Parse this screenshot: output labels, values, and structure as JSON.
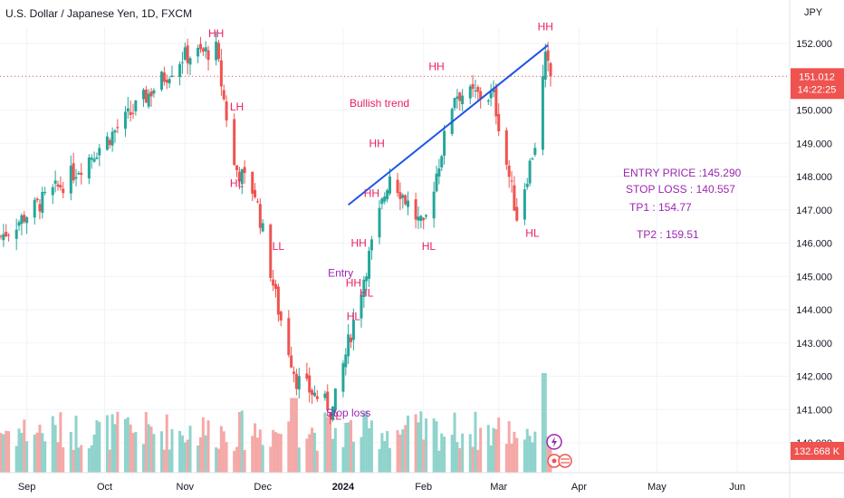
{
  "header": {
    "title": "U.S. Dollar / Japanese Yen, 1D, FXCM",
    "price_scale_label": "JPY"
  },
  "notes": {
    "entry": "ENTRY PRICE :145.290",
    "stop": "STOP LOSS : 140.557",
    "tp1": "TP1 :   154.77",
    "tp2": "TP2 : 159.51"
  },
  "price_badge": {
    "price": "151.012",
    "countdown": "14:22:25",
    "color": "#ef5350"
  },
  "volume_badge": {
    "value": "132.668 K",
    "color": "#ef5350"
  },
  "colors": {
    "up": "#26a69a",
    "down": "#ef5350",
    "up_volume": "#8fd3cc",
    "down_volume": "#f4a9a7",
    "annotation": "#e91e63",
    "annotation_purple": "#9c27b0",
    "trendline": "#1e53e5",
    "grid": "#f0f3fa"
  },
  "chart_data": {
    "type": "candlestick",
    "title": "U.S. Dollar / Japanese Yen, 1D, FXCM",
    "x_tick_labels": [
      "Sep",
      "Oct",
      "Nov",
      "Dec",
      "2024",
      "Feb",
      "Mar",
      "Apr",
      "May",
      "Jun"
    ],
    "y_tick_labels": [
      "152.000",
      "151.000",
      "150.000",
      "149.000",
      "148.000",
      "147.000",
      "146.000",
      "145.000",
      "144.000",
      "143.000",
      "142.000",
      "141.000",
      "140.000"
    ],
    "ylim": [
      139.0,
      152.8
    ],
    "grid": true,
    "last_price": 151.012,
    "key_points": [
      {
        "date": "2023-08-22",
        "close": 146.2
      },
      {
        "date": "2023-09-15",
        "close": 147.8
      },
      {
        "date": "2023-10-03",
        "close": 149.2
      },
      {
        "date": "2023-10-31",
        "close": 151.6
      },
      {
        "date": "2023-11-13",
        "close": 151.8
      },
      {
        "date": "2023-11-20",
        "close": 148.3
      },
      {
        "date": "2023-11-28",
        "close": 147.5
      },
      {
        "date": "2023-12-07",
        "close": 144.0
      },
      {
        "date": "2023-12-14",
        "close": 141.9
      },
      {
        "date": "2023-12-28",
        "close": 141.0
      },
      {
        "date": "2024-01-10",
        "close": 145.3
      },
      {
        "date": "2024-01-19",
        "close": 148.1
      },
      {
        "date": "2024-02-01",
        "close": 146.4
      },
      {
        "date": "2024-02-13",
        "close": 150.5
      },
      {
        "date": "2024-02-28",
        "close": 150.4
      },
      {
        "date": "2024-03-08",
        "close": 146.8
      },
      {
        "date": "2024-03-15",
        "close": 149.0
      },
      {
        "date": "2024-03-19",
        "close": 151.5
      },
      {
        "date": "2024-03-21",
        "close": 151.0
      }
    ],
    "annotations": [
      {
        "text": "HH",
        "date": "2023-11-13",
        "price": 152.3
      },
      {
        "text": "LH",
        "date": "2023-11-21",
        "price": 150.1
      },
      {
        "text": "HL",
        "date": "2023-11-21",
        "price": 147.8
      },
      {
        "text": "LL",
        "date": "2023-12-07",
        "price": 145.9
      },
      {
        "text": "LL",
        "date": "2023-12-29",
        "price": 140.8
      },
      {
        "text": "Stop loss",
        "date": "2024-01-03",
        "price": 140.9
      },
      {
        "text": "Entry",
        "date": "2023-12-31",
        "price": 145.1
      },
      {
        "text": "HH",
        "date": "2024-01-05",
        "price": 144.8
      },
      {
        "text": "HL",
        "date": "2024-01-05",
        "price": 143.8
      },
      {
        "text": "HH",
        "date": "2024-01-07",
        "price": 146.0
      },
      {
        "text": "HL",
        "date": "2024-01-10",
        "price": 144.5
      },
      {
        "text": "HH",
        "date": "2024-01-12",
        "price": 147.5
      },
      {
        "text": "HH",
        "date": "2024-01-14",
        "price": 149.0
      },
      {
        "text": "HL",
        "date": "2024-02-03",
        "price": 145.9
      },
      {
        "text": "Bullish trend",
        "date": "2024-01-15",
        "price": 150.2
      },
      {
        "text": "HH",
        "date": "2024-02-06",
        "price": 151.3
      },
      {
        "text": "HL",
        "date": "2024-03-14",
        "price": 146.3
      },
      {
        "text": "HH",
        "date": "2024-03-19",
        "price": 152.5
      }
    ],
    "trendline": {
      "from": {
        "date": "2024-01-03",
        "price": 147.15
      },
      "to": {
        "date": "2024-03-20",
        "price": 151.95
      }
    },
    "horizontal_line": {
      "price": 151.012,
      "style": "dotted"
    },
    "series": [
      {
        "values": [
          146.2,
          147.8,
          149.2,
          151.6,
          151.8,
          148.3,
          147.5,
          144.0,
          141.9,
          141.0,
          145.3,
          148.1,
          146.4,
          150.5,
          150.4,
          146.8,
          149.0,
          151.5,
          151.0
        ]
      }
    ]
  }
}
